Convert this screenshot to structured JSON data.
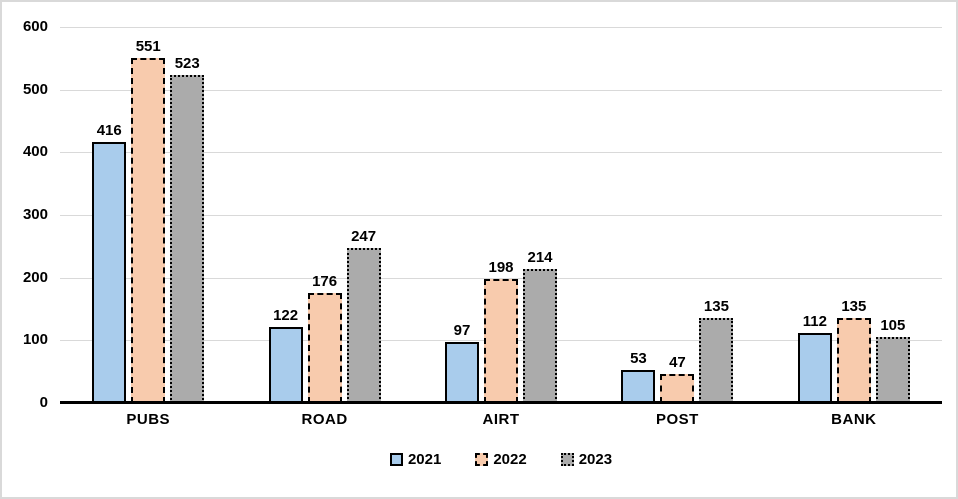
{
  "frame": {
    "background": "#FFFFFF",
    "border_color": "#D9D9D9"
  },
  "chart_data": {
    "type": "bar",
    "categories": [
      "PUBS",
      "ROAD",
      "AIRT",
      "POST",
      "BANK"
    ],
    "series": [
      {
        "name": "2021",
        "values": [
          416,
          122,
          97,
          53,
          112
        ],
        "fill": "#A9CCEC",
        "border_color": "#000000",
        "border_style": "solid"
      },
      {
        "name": "2022",
        "values": [
          551,
          176,
          198,
          47,
          135
        ],
        "fill": "#F8CBAD",
        "border_color": "#000000",
        "border_style": "dashed"
      },
      {
        "name": "2023",
        "values": [
          523,
          247,
          214,
          135,
          105
        ],
        "fill": "#ABABAB",
        "border_color": "#000000",
        "border_style": "dotted"
      }
    ],
    "ylim": [
      0,
      600
    ],
    "yticks": [
      0,
      100,
      200,
      300,
      400,
      500,
      600
    ],
    "grid": true,
    "gridline_color": "#D9D9D9",
    "axis_color": "#000000",
    "label_color": "#000000",
    "legend_position": "bottom",
    "data_labels_shown": true
  }
}
